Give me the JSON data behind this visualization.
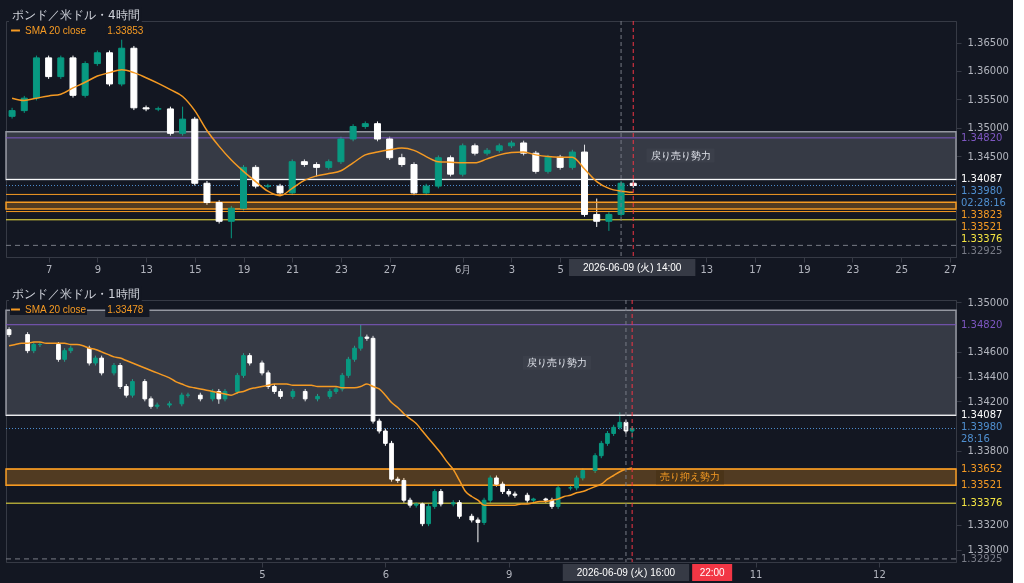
{
  "chart_data": [
    {
      "type": "candlestick",
      "title": "ポンド／米ドル・4時間",
      "legend": "top left",
      "grid": false,
      "categories": [
        null,
        null,
        null,
        "7",
        null,
        null,
        null,
        "9",
        null,
        null,
        null,
        "13",
        null,
        null,
        null,
        "15",
        null,
        null,
        null,
        "19",
        null,
        null,
        null,
        "21",
        null,
        null,
        null,
        "23",
        null,
        null,
        null,
        "27",
        null,
        null,
        null,
        null,
        null,
        "6月",
        null,
        null,
        null,
        "3",
        null,
        null,
        null,
        "5",
        null,
        null,
        null,
        null,
        null,
        null,
        null,
        null,
        null,
        null,
        null,
        "13",
        null,
        null,
        null,
        "17",
        null,
        null,
        null,
        "19",
        null,
        null,
        null,
        "23",
        null,
        null,
        null,
        "25",
        null,
        null,
        null,
        "27"
      ],
      "ohlc": [
        [
          1.352,
          1.3535,
          1.3516,
          1.353
        ],
        [
          1.353,
          1.3556,
          1.3526,
          1.3552
        ],
        [
          1.3552,
          1.3627,
          1.3548,
          1.3623
        ],
        [
          1.3623,
          1.3627,
          1.3586,
          1.359
        ],
        [
          1.359,
          1.3627,
          1.3586,
          1.3623
        ],
        [
          1.3623,
          1.3627,
          1.3553,
          1.3557
        ],
        [
          1.3557,
          1.3617,
          1.3553,
          1.3613
        ],
        [
          1.3613,
          1.3636,
          1.3609,
          1.3632
        ],
        [
          1.3632,
          1.3636,
          1.3573,
          1.3577
        ],
        [
          1.3577,
          1.3655,
          1.3573,
          1.364
        ],
        [
          1.364,
          1.3644,
          1.3531,
          1.3535
        ],
        [
          1.3535,
          1.3539,
          1.3529,
          1.3533
        ],
        [
          1.3533,
          1.3537,
          1.3529,
          1.3533
        ],
        [
          1.3533,
          1.3537,
          1.3486,
          1.349
        ],
        [
          1.349,
          1.3537,
          1.3486,
          1.3515
        ],
        [
          1.3515,
          1.3519,
          1.3398,
          1.3402
        ],
        [
          1.3402,
          1.3406,
          1.3364,
          1.3368
        ],
        [
          1.3368,
          1.3372,
          1.3331,
          1.3335
        ],
        [
          1.3335,
          1.3362,
          1.3305,
          1.3358
        ],
        [
          1.3358,
          1.3434,
          1.3354,
          1.343
        ],
        [
          1.343,
          1.3434,
          1.3393,
          1.3397
        ],
        [
          1.3397,
          1.3401,
          1.3393,
          1.3397
        ],
        [
          1.3397,
          1.3401,
          1.3381,
          1.3385
        ],
        [
          1.3385,
          1.3444,
          1.3381,
          1.344
        ],
        [
          1.344,
          1.3444,
          1.3431,
          1.3435
        ],
        [
          1.3435,
          1.3439,
          1.3414,
          1.343
        ],
        [
          1.343,
          1.3444,
          1.3426,
          1.344
        ],
        [
          1.344,
          1.3484,
          1.3436,
          1.348
        ],
        [
          1.348,
          1.3506,
          1.3476,
          1.3502
        ],
        [
          1.3502,
          1.3511,
          1.3498,
          1.3507
        ],
        [
          1.3507,
          1.3511,
          1.3476,
          1.348
        ],
        [
          1.348,
          1.3484,
          1.3443,
          1.3447
        ],
        [
          1.3447,
          1.3454,
          1.3431,
          1.3435
        ],
        [
          1.3435,
          1.3439,
          1.3381,
          1.3385
        ],
        [
          1.3385,
          1.3401,
          1.3381,
          1.3397
        ],
        [
          1.3397,
          1.3451,
          1.3393,
          1.3447
        ],
        [
          1.3447,
          1.3451,
          1.3414,
          1.3418
        ],
        [
          1.3418,
          1.3472,
          1.3414,
          1.3468
        ],
        [
          1.3468,
          1.3472,
          1.3451,
          1.3455
        ],
        [
          1.3455,
          1.3464,
          1.3451,
          1.346
        ],
        [
          1.346,
          1.3472,
          1.3456,
          1.3468
        ],
        [
          1.3468,
          1.3477,
          1.3464,
          1.3473
        ],
        [
          1.3473,
          1.3477,
          1.3451,
          1.3455
        ],
        [
          1.3455,
          1.3459,
          1.3419,
          1.3423
        ],
        [
          1.3423,
          1.3452,
          1.3419,
          1.3448
        ],
        [
          1.3448,
          1.3452,
          1.3426,
          1.343
        ],
        [
          1.343,
          1.3461,
          1.3426,
          1.3457
        ],
        [
          1.3457,
          1.347,
          1.3343,
          1.3347
        ],
        [
          1.3347,
          1.3375,
          1.3325,
          1.3335
        ],
        [
          1.3335,
          1.3351,
          1.3318,
          1.3347
        ],
        [
          1.3347,
          1.3406,
          1.3343,
          1.3402
        ],
        [
          1.3402,
          1.3409,
          1.3394,
          1.3398
        ],
        null,
        null,
        null,
        null,
        null,
        null,
        null,
        null,
        null,
        null,
        null,
        null,
        null,
        null,
        null,
        null,
        null,
        null,
        null,
        null,
        null,
        null,
        null,
        null,
        null,
        null
      ],
      "series": [
        {
          "type": "line",
          "name": "SMA 20 close",
          "color": "#f59a23",
          "values": [
            1.3552,
            1.3548,
            1.3552,
            1.3556,
            1.3559,
            1.357,
            1.358,
            1.3591,
            1.3597,
            1.3602,
            1.3597,
            1.3588,
            1.3578,
            1.3567,
            1.3555,
            1.353,
            1.3495,
            1.3467,
            1.3443,
            1.3423,
            1.3405,
            1.3388,
            1.338,
            1.3393,
            1.3407,
            1.3415,
            1.3419,
            1.3424,
            1.3438,
            1.3452,
            1.3457,
            1.3461,
            1.3464,
            1.346,
            1.3449,
            1.344,
            1.3439,
            1.3438,
            1.3438,
            1.3445,
            1.3452,
            1.3456,
            1.3457,
            1.3452,
            1.3449,
            1.3448,
            1.3448,
            1.3427,
            1.3405,
            1.3393,
            1.3388,
            1.3386,
            null,
            null,
            null,
            null,
            null,
            null,
            null,
            null,
            null,
            null,
            null,
            null,
            null,
            null,
            null,
            null,
            null,
            null,
            null,
            null,
            null,
            null,
            null,
            null,
            null,
            null
          ]
        }
      ],
      "annotations": [
        "1.33853",
        "2026-06-09 (火) 14:00"
      ],
      "ylim": [
        1.3272,
        1.3688
      ],
      "yticks": [
        {
          "value": 1.345,
          "label": "1.34500"
        },
        {
          "value": 1.35,
          "label": "1.35000"
        },
        {
          "value": 1.355,
          "label": "1.35500"
        },
        {
          "value": 1.36,
          "label": "1.36000"
        },
        {
          "value": 1.365,
          "label": "1.36500"
        }
      ],
      "ref_lines": [
        {
          "axis": "y",
          "value": 1.3482,
          "label": "1.34820",
          "color": "#7e57c2",
          "line_style": "solid"
        },
        {
          "axis": "y",
          "value": 1.34087,
          "label": "1.34087",
          "color": "#ffffff",
          "line_style": "solid"
        },
        {
          "axis": "y",
          "value": 1.3398,
          "label": "1.33980\n02:28:16",
          "color": "#4f8fd0",
          "line_style": "dotted"
        },
        {
          "axis": "y",
          "value": 1.33823,
          "label": "1.33823",
          "color": "#f59a23",
          "line_style": "solid"
        },
        {
          "axis": "y",
          "value": 1.33521,
          "label": "1.33521",
          "color": "#f59a23",
          "line_style": "solid"
        },
        {
          "axis": "y",
          "value": 1.33376,
          "label": "1.33376",
          "color": "#f5e642",
          "line_style": "solid"
        },
        {
          "axis": "y",
          "value": 1.32925,
          "label": "1.32925",
          "color": "#787b86",
          "line_style": "dashed"
        }
      ],
      "bands": [
        {
          "axis": "y",
          "from": 1.34087,
          "to": 1.3493,
          "label": "戻り売り勢力",
          "color": "#9598a1"
        },
        {
          "axis": "y",
          "from": 1.33565,
          "to": 1.33685,
          "label": null,
          "color": "#f59a23"
        }
      ]
    },
    {
      "type": "candlestick",
      "title": "ポンド／米ドル・1時間",
      "legend": "top left",
      "grid": false,
      "categories": [
        null,
        null,
        null,
        null,
        null,
        null,
        null,
        null,
        null,
        null,
        null,
        null,
        null,
        null,
        null,
        null,
        null,
        null,
        null,
        null,
        null,
        null,
        null,
        null,
        null,
        null,
        null,
        null,
        null,
        null,
        null,
        null,
        null,
        null,
        null,
        null,
        null,
        null,
        null,
        null,
        null,
        "5",
        null,
        null,
        null,
        null,
        null,
        null,
        null,
        null,
        null,
        null,
        null,
        null,
        null,
        null,
        null,
        null,
        null,
        null,
        null,
        "6",
        null,
        null,
        null,
        null,
        null,
        null,
        null,
        null,
        null,
        null,
        null,
        null,
        null,
        null,
        null,
        null,
        null,
        null,
        null,
        "9",
        null,
        null,
        null,
        null,
        null,
        null,
        null,
        null,
        null,
        null,
        null,
        null,
        null,
        null,
        null,
        null,
        null,
        null,
        null,
        null,
        null,
        null,
        null,
        null,
        null,
        null,
        null,
        null,
        null,
        null,
        null,
        null,
        null,
        null,
        null,
        null,
        null,
        null,
        null,
        "11",
        null,
        null,
        null,
        null,
        null,
        null,
        null,
        null,
        null,
        null,
        null,
        null,
        null,
        null,
        null,
        null,
        null,
        null,
        null,
        "12",
        null,
        null,
        null,
        null,
        null,
        null,
        null,
        null,
        null,
        null,
        null,
        null
      ],
      "ohlc": [
        [
          1.3478,
          1.348,
          1.3472,
          1.3474
        ],
        null,
        null,
        [
          1.3474,
          1.3476,
          1.3459,
          1.3461
        ],
        [
          1.3461,
          1.3468,
          1.3459,
          1.3466
        ],
        [
          1.3466,
          1.3468,
          1.3464,
          1.3466
        ],
        null,
        null,
        [
          1.3466,
          1.3468,
          1.3452,
          1.3454
        ],
        [
          1.3454,
          1.3463,
          1.3452,
          1.3461
        ],
        [
          1.3461,
          1.3465,
          1.3459,
          1.3463
        ],
        null,
        null,
        [
          1.3463,
          1.3465,
          1.3449,
          1.3451
        ],
        [
          1.3451,
          1.3457,
          1.3449,
          1.3455
        ],
        [
          1.3455,
          1.3457,
          1.3441,
          1.3443
        ],
        null,
        [
          1.3443,
          1.3451,
          1.3441,
          1.3449
        ],
        [
          1.3449,
          1.3451,
          1.343,
          1.3432
        ],
        [
          1.3432,
          1.3434,
          1.3423,
          1.3425
        ],
        [
          1.3425,
          1.3438,
          1.3423,
          1.3436
        ],
        null,
        [
          1.3436,
          1.3438,
          1.342,
          1.3422
        ],
        [
          1.3422,
          1.3424,
          1.3414,
          1.3416
        ],
        [
          1.3416,
          1.3419,
          1.3414,
          1.3417
        ],
        null,
        [
          1.3417,
          1.342,
          1.3415,
          1.3418
        ],
        null,
        [
          1.3418,
          1.3427,
          1.3416,
          1.3425
        ],
        [
          1.3425,
          1.3427,
          1.3423,
          1.3425
        ],
        null,
        [
          1.3425,
          1.3427,
          1.342,
          1.3422
        ],
        null,
        [
          1.3422,
          1.343,
          1.342,
          1.3428
        ],
        [
          1.3428,
          1.343,
          1.3418,
          1.3422
        ],
        [
          1.3422,
          1.343,
          1.342,
          1.3428
        ],
        null,
        [
          1.3428,
          1.3443,
          1.3426,
          1.3441
        ],
        [
          1.3441,
          1.3459,
          1.3439,
          1.3457
        ],
        [
          1.3457,
          1.3459,
          1.3449,
          1.3451
        ],
        null,
        [
          1.3451,
          1.3453,
          1.3441,
          1.3443
        ],
        [
          1.3443,
          1.3445,
          1.343,
          1.3432
        ],
        [
          1.3432,
          1.3434,
          1.3426,
          1.3428
        ],
        [
          1.3428,
          1.343,
          1.3422,
          1.3424
        ],
        null,
        [
          1.3424,
          1.343,
          1.3422,
          1.3428
        ],
        null,
        [
          1.3428,
          1.343,
          1.342,
          1.3422
        ],
        null,
        [
          1.3422,
          1.3426,
          1.342,
          1.3424
        ],
        null,
        [
          1.3424,
          1.343,
          1.3422,
          1.3428
        ],
        [
          1.3428,
          1.3432,
          1.3426,
          1.343
        ],
        [
          1.343,
          1.3443,
          1.3428,
          1.3441
        ],
        [
          1.3441,
          1.3456,
          1.3439,
          1.3454
        ],
        [
          1.3454,
          1.3465,
          1.3452,
          1.3463
        ],
        [
          1.3463,
          1.3482,
          1.3461,
          1.3472
        ],
        [
          1.3472,
          1.3474,
          1.3469,
          1.3471
        ],
        [
          1.3471,
          1.3473,
          1.3402,
          1.3404
        ],
        [
          1.3404,
          1.3406,
          1.3394,
          1.3396
        ],
        [
          1.3396,
          1.3398,
          1.3384,
          1.3386
        ],
        [
          1.3386,
          1.3388,
          1.3355,
          1.3357
        ],
        [
          1.3357,
          1.3359,
          1.3354,
          1.3356
        ],
        [
          1.3356,
          1.3358,
          1.3338,
          1.334
        ],
        [
          1.334,
          1.3342,
          1.3334,
          1.3336
        ],
        [
          1.3336,
          1.3338,
          1.3334,
          1.3337
        ],
        [
          1.3337,
          1.3338,
          1.3319,
          1.3321
        ],
        [
          1.3321,
          1.3337,
          1.3319,
          1.3335
        ],
        [
          1.3335,
          1.3349,
          1.3333,
          1.3347
        ],
        [
          1.3347,
          1.3349,
          1.3335,
          1.3337
        ],
        null,
        [
          1.3337,
          1.334,
          1.3335,
          1.3338
        ],
        [
          1.3338,
          1.334,
          1.3325,
          1.3327
        ],
        null,
        [
          1.3327,
          1.3329,
          1.3322,
          1.3324
        ],
        [
          1.3324,
          1.3326,
          1.3306,
          1.3322
        ],
        [
          1.3322,
          1.3342,
          1.332,
          1.334
        ],
        [
          1.334,
          1.336,
          1.3338,
          1.3358
        ],
        [
          1.3358,
          1.336,
          1.3351,
          1.3353
        ],
        [
          1.3353,
          1.3355,
          1.3345,
          1.3347
        ],
        [
          1.3347,
          1.3349,
          1.3343,
          1.3345
        ],
        [
          1.3345,
          1.3347,
          1.3342,
          1.3344
        ],
        null,
        [
          1.3344,
          1.3346,
          1.3338,
          1.334
        ],
        [
          1.334,
          1.3342,
          1.3338,
          1.3341
        ],
        null,
        [
          1.3341,
          1.3342,
          1.3338,
          1.334
        ],
        [
          1.334,
          1.3342,
          1.3333,
          1.3335
        ],
        [
          1.3335,
          1.3352,
          1.3333,
          1.335
        ],
        null,
        [
          1.335,
          1.3352,
          1.3348,
          1.335
        ],
        [
          1.335,
          1.336,
          1.3348,
          1.3358
        ],
        [
          1.3358,
          1.3366,
          1.3356,
          1.3364
        ],
        null,
        [
          1.3364,
          1.3378,
          1.3362,
          1.3376
        ],
        [
          1.3376,
          1.3388,
          1.3374,
          1.3386
        ],
        [
          1.3386,
          1.3396,
          1.3384,
          1.3394
        ],
        [
          1.3394,
          1.3401,
          1.3392,
          1.3399
        ],
        [
          1.3399,
          1.3411,
          1.3397,
          1.3403
        ],
        [
          1.3403,
          1.3405,
          1.3394,
          1.3396
        ],
        [
          1.3396,
          1.34,
          1.339,
          1.3398
        ],
        null,
        null,
        null,
        null,
        null,
        null,
        null,
        null,
        null,
        null,
        null,
        null,
        null,
        null,
        null,
        null,
        null,
        null,
        null,
        null,
        null,
        null,
        null,
        null,
        null,
        null,
        null,
        null,
        null,
        null,
        null,
        null,
        null,
        null,
        null,
        null,
        null,
        null,
        null,
        null,
        null,
        null,
        null,
        null,
        null,
        null,
        null,
        null,
        null,
        null,
        null,
        null
      ],
      "series": [
        {
          "type": "line",
          "name": "SMA 20 close",
          "color": "#f59a23",
          "values": [
            1.3465,
            1.3466,
            1.3467,
            1.3467,
            1.3468,
            1.3468,
            1.3467,
            1.3467,
            1.3467,
            1.3467,
            1.3466,
            1.3466,
            1.3465,
            1.3463,
            1.3462,
            1.346,
            1.3458,
            1.3456,
            1.3455,
            1.3453,
            1.3451,
            1.3449,
            1.3447,
            1.3445,
            1.3443,
            1.3441,
            1.3439,
            1.3436,
            1.3434,
            1.3432,
            1.3431,
            1.343,
            1.3429,
            1.3428,
            1.3427,
            1.3426,
            1.3425,
            1.3427,
            1.3428,
            1.343,
            1.3431,
            1.3432,
            1.3433,
            1.3434,
            1.3434,
            1.3434,
            1.3433,
            1.3433,
            1.3433,
            1.3433,
            1.3432,
            1.3432,
            1.3432,
            1.3432,
            1.3431,
            1.3431,
            1.3431,
            1.3432,
            1.3434,
            1.3432,
            1.343,
            1.3425,
            1.3419,
            1.3415,
            1.341,
            1.3406,
            1.3402,
            1.3396,
            1.339,
            1.3384,
            1.3378,
            1.3371,
            1.3365,
            1.3356,
            1.3347,
            1.3343,
            1.334,
            1.3336,
            1.3336,
            1.3336,
            1.3336,
            1.3336,
            1.3336,
            1.3337,
            1.3337,
            1.3338,
            1.3339,
            1.3339,
            1.334,
            1.3341,
            1.3343,
            1.3344,
            1.3346,
            1.3347,
            1.3349,
            1.3351,
            1.3353,
            1.3357,
            1.336,
            1.3363,
            1.3365,
            1.3366,
            null,
            null,
            null,
            null,
            null,
            null,
            null,
            null,
            null,
            null,
            null,
            null,
            null,
            null,
            null,
            null,
            null,
            null,
            null,
            null,
            null,
            null,
            null,
            null,
            null,
            null,
            null,
            null,
            null,
            null,
            null,
            null,
            null,
            null,
            null,
            null,
            null,
            null,
            null,
            null,
            null,
            null,
            null,
            null,
            null,
            null,
            null,
            null,
            null,
            null,
            null,
            null
          ]
        }
      ],
      "annotations": [
        "1.33478",
        "2026-06-09 (火) 16:00",
        "22:00"
      ],
      "ylim": [
        1.329,
        1.3502
      ],
      "yticks": [
        {
          "value": 1.33,
          "label": "1.33000"
        },
        {
          "value": 1.332,
          "label": "1.33200"
        },
        {
          "value": 1.338,
          "label": "1.33800"
        },
        {
          "value": 1.342,
          "label": "1.34200"
        },
        {
          "value": 1.344,
          "label": "1.34400"
        },
        {
          "value": 1.346,
          "label": "1.34600"
        },
        {
          "value": 1.35,
          "label": "1.35000"
        }
      ],
      "ref_lines": [
        {
          "axis": "y",
          "value": 1.3482,
          "label": "1.34820",
          "color": "#7e57c2",
          "line_style": "solid"
        },
        {
          "axis": "y",
          "value": 1.34087,
          "label": "1.34087",
          "color": "#ffffff",
          "line_style": "solid"
        },
        {
          "axis": "y",
          "value": 1.3398,
          "label": "1.33980\n28:16",
          "color": "#4f8fd0",
          "line_style": "dotted"
        },
        {
          "axis": "y",
          "value": 1.33652,
          "label": "1.33652",
          "color": "#f59a23",
          "line_style": "solid"
        },
        {
          "axis": "y",
          "value": 1.33521,
          "label": "1.33521",
          "color": "#f59a23",
          "line_style": "solid"
        },
        {
          "axis": "y",
          "value": 1.33376,
          "label": "1.33376",
          "color": "#f5e642",
          "line_style": "solid"
        },
        {
          "axis": "y",
          "value": 1.32925,
          "label": "1.32925",
          "color": "#787b86",
          "line_style": "dashed"
        }
      ],
      "bands": [
        {
          "axis": "y",
          "from": 1.34087,
          "to": 1.34937,
          "label": "戻り売り勢力",
          "color": "#9598a1"
        },
        {
          "axis": "y",
          "from": 1.33521,
          "to": 1.33652,
          "label": "売り抑え勢力",
          "color": "#f59a23"
        }
      ]
    }
  ]
}
